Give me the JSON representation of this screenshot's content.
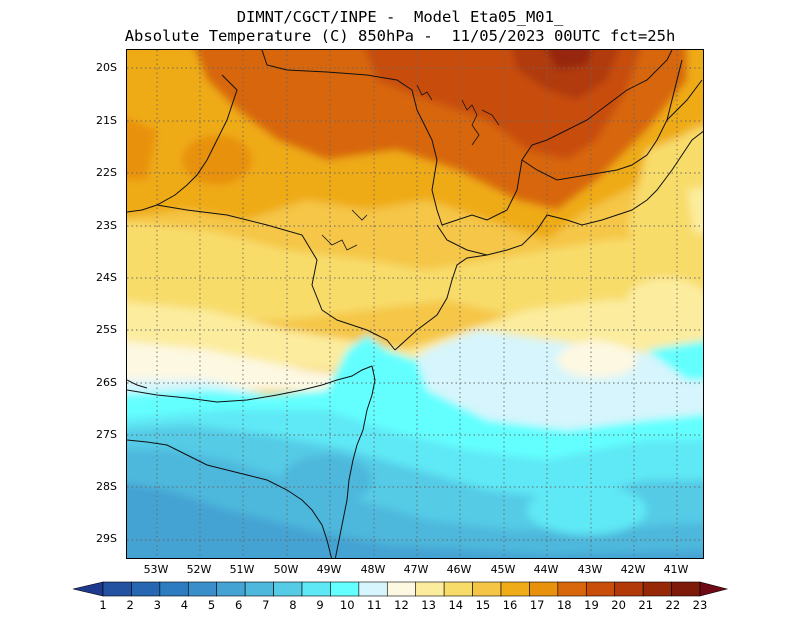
{
  "title": {
    "line1": "DIMNT/CGCT/INPE -  Model Eta05_M01_",
    "line2": "Absolute Temperature (C) 850hPa -  11/05/2023 00UTC fct=25h"
  },
  "map": {
    "lat_labels": [
      "20S",
      "21S",
      "22S",
      "23S",
      "24S",
      "25S",
      "26S",
      "27S",
      "28S",
      "29S"
    ],
    "lon_labels": [
      "53W",
      "52W",
      "51W",
      "50W",
      "49W",
      "48W",
      "47W",
      "46W",
      "45W",
      "44W",
      "43W",
      "42W",
      "41W"
    ]
  },
  "colorbar": {
    "labels": [
      "1",
      "2",
      "3",
      "4",
      "5",
      "6",
      "7",
      "8",
      "9",
      "10",
      "11",
      "12",
      "13",
      "14",
      "15",
      "16",
      "17",
      "18",
      "19",
      "20",
      "21",
      "22",
      "23"
    ],
    "colors": [
      "#1f3a8c",
      "#2352a0",
      "#2766b0",
      "#2e7cc0",
      "#3a8fca",
      "#45a3d3",
      "#4eb7dc",
      "#55cbe6",
      "#5ee8f5",
      "#64ffff",
      "#d6f5fc",
      "#fdf8e2",
      "#fcec9e",
      "#f8dc6a",
      "#f5c646",
      "#efab18",
      "#e8910d",
      "#d8660a",
      "#c84e0a",
      "#b13a08",
      "#962808",
      "#7e1a0a",
      "#6e0a14"
    ]
  }
}
